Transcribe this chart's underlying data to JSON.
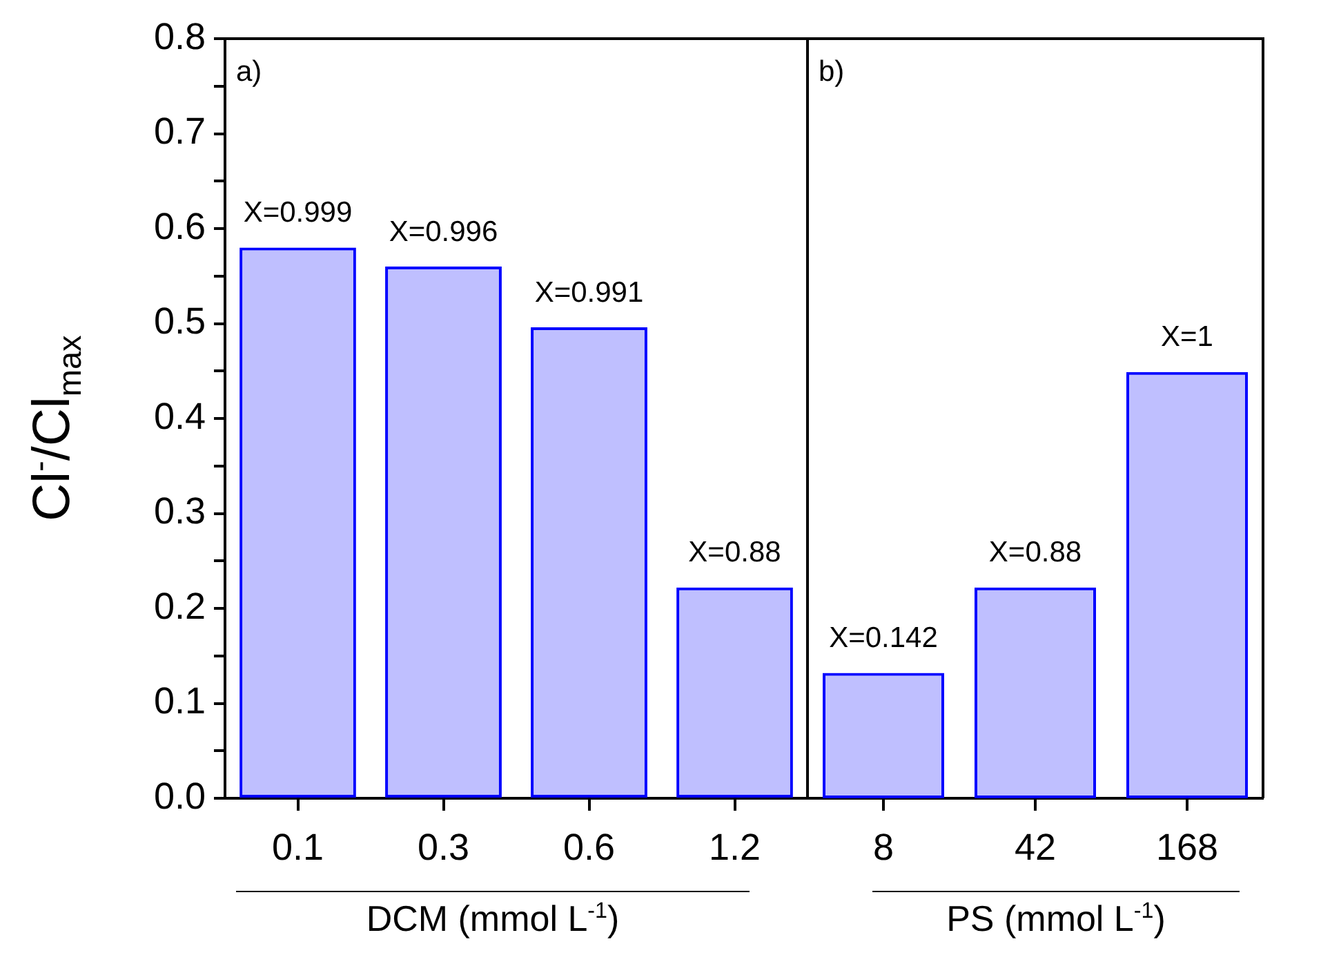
{
  "chart_data": [
    {
      "type": "bar",
      "xlabel": "DCM (mmol L$^{-1}$)",
      "ylabel": "Cl$^{-}$/Cl$_{max}$",
      "categories": [
        "0.1",
        "0.3",
        "0.6",
        "1.2"
      ],
      "values": [
        0.58,
        0.56,
        0.496,
        0.222
      ],
      "color": "#0000ff",
      "ylim": [
        0,
        0.8
      ],
      "yticks": [
        {
          "value": 0,
          "label": "0.0"
        },
        {
          "value": 0.05,
          "label": null
        },
        {
          "value": 0.1,
          "label": "0.1"
        },
        {
          "value": 0.15,
          "label": null
        },
        {
          "value": 0.2,
          "label": "0.2"
        },
        {
          "value": 0.25,
          "label": null
        },
        {
          "value": 0.3,
          "label": "0.3"
        },
        {
          "value": 0.35,
          "label": null
        },
        {
          "value": 0.4,
          "label": "0.4"
        },
        {
          "value": 0.45,
          "label": null
        },
        {
          "value": 0.5,
          "label": "0.5"
        },
        {
          "value": 0.55,
          "label": null
        },
        {
          "value": 0.6,
          "label": "0.6"
        },
        {
          "value": 0.65,
          "label": null
        },
        {
          "value": 0.7,
          "label": "0.7"
        },
        {
          "value": 0.75,
          "label": null
        },
        {
          "value": 0.8,
          "label": "0.8"
        }
      ],
      "annotations": [
        "a)",
        {
          "text": "X=0.999",
          "x": "0.1",
          "y": 0.58
        },
        {
          "text": "X=0.996",
          "x": "0.3",
          "y": 0.56
        },
        {
          "text": "X=0.991",
          "x": "0.6",
          "y": 0.496
        },
        {
          "text": "X=0.88",
          "x": "1.2",
          "y": 0.222
        }
      ],
      "grid": false,
      "legend": false
    },
    {
      "type": "bar",
      "xlabel": "PS (mmol L$^{-1}$)",
      "categories": [
        "8",
        "42",
        "168"
      ],
      "values": [
        0.132,
        0.222,
        0.449
      ],
      "color": "#0000ff",
      "ylim": [
        0,
        0.8
      ],
      "tick_labels": "x",
      "annotations": [
        "b)",
        {
          "text": "X=0.142",
          "x": "8",
          "y": 0.132
        },
        {
          "text": "X=0.88",
          "x": "42",
          "y": 0.222
        },
        {
          "text": "X=1",
          "x": "168",
          "y": 0.449
        }
      ],
      "grid": false,
      "legend": false
    }
  ]
}
